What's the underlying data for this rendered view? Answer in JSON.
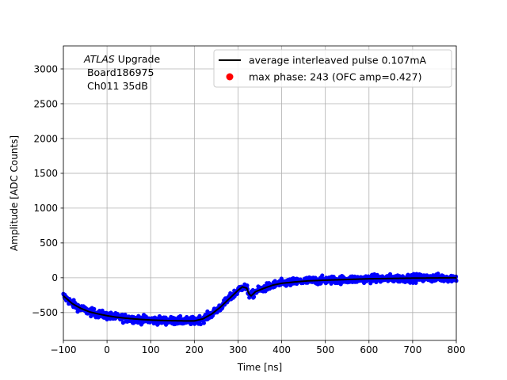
{
  "chart_data": {
    "type": "scatter",
    "title": "",
    "xlabel": "Time [ns]",
    "ylabel": "Amplitude [ADC Counts]",
    "xlim": [
      -100,
      800
    ],
    "ylim": [
      -900,
      3330
    ],
    "grid": true,
    "xticks": [
      -100,
      0,
      100,
      200,
      300,
      400,
      500,
      600,
      700,
      800
    ],
    "yticks": [
      -500,
      0,
      500,
      1000,
      1500,
      2000,
      2500,
      3000
    ],
    "annotation": {
      "line1_italic": "ATLAS",
      "line1_rest": " Upgrade",
      "line2": " Board186975",
      "line3": " Ch011 35dB"
    },
    "legend": {
      "placement": "top-right",
      "entries": [
        {
          "label": "average interleaved pulse 0.107mA",
          "marker": "line",
          "color": "#000000"
        },
        {
          "label": "max phase: 243 (OFC amp=0.427)",
          "marker": "dot",
          "color": "#ff0000"
        }
      ]
    },
    "series": [
      {
        "name": "average interleaved pulse 0.107mA",
        "kind": "line",
        "color": "#000000",
        "x": [
          -100,
          -80,
          -60,
          -40,
          -20,
          0,
          20,
          50,
          80,
          100,
          120,
          150,
          180,
          200,
          220,
          240,
          260,
          280,
          300,
          310,
          320,
          325,
          330,
          340,
          360,
          380,
          400,
          430,
          460,
          500,
          550,
          600,
          650,
          700,
          750,
          800
        ],
        "y": [
          -260,
          -370,
          -440,
          -490,
          -520,
          -545,
          -565,
          -585,
          -600,
          -607,
          -612,
          -617,
          -620,
          -620,
          -590,
          -520,
          -420,
          -300,
          -180,
          -130,
          -150,
          -230,
          -260,
          -200,
          -150,
          -105,
          -80,
          -60,
          -45,
          -35,
          -25,
          -15,
          -10,
          -5,
          -3,
          0
        ]
      },
      {
        "name": "samples",
        "kind": "scatter",
        "color": "#0000ff",
        "noise": 28,
        "n_points": 1100
      }
    ]
  }
}
